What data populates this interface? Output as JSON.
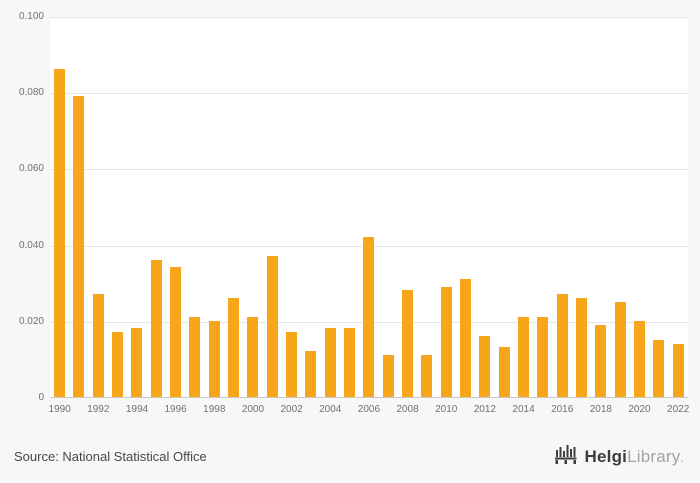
{
  "chart_data": {
    "type": "bar",
    "title": "",
    "xlabel": "",
    "ylabel": "",
    "categories": [
      1990,
      1991,
      1992,
      1993,
      1994,
      1995,
      1996,
      1997,
      1998,
      1999,
      2000,
      2001,
      2002,
      2003,
      2004,
      2005,
      2006,
      2007,
      2008,
      2009,
      2010,
      2011,
      2012,
      2013,
      2014,
      2015,
      2016,
      2017,
      2018,
      2019,
      2020,
      2021,
      2022
    ],
    "values": [
      0.086,
      0.079,
      0.027,
      0.017,
      0.018,
      0.036,
      0.034,
      0.021,
      0.02,
      0.026,
      0.021,
      0.037,
      0.017,
      0.012,
      0.018,
      0.018,
      0.042,
      0.011,
      0.028,
      0.011,
      0.029,
      0.031,
      0.016,
      0.013,
      0.021,
      0.021,
      0.027,
      0.026,
      0.019,
      0.025,
      0.02,
      0.015,
      0.014
    ],
    "ylim": [
      0,
      0.1
    ],
    "yticks": [
      {
        "value": 0,
        "label": "0"
      },
      {
        "value": 0.02,
        "label": "0.020"
      },
      {
        "value": 0.04,
        "label": "0.040"
      },
      {
        "value": 0.06,
        "label": "0.060"
      },
      {
        "value": 0.08,
        "label": "0.080"
      },
      {
        "value": 0.1,
        "label": "0.100"
      }
    ],
    "xtick_step": 2,
    "grid": true,
    "legend": "none",
    "bar_color": "#f7a51b",
    "grid_color": "#e6e6e6",
    "axis_color": "#c9c9c9",
    "tick_label_color": "#707070",
    "plot_background": "#ffffff",
    "page_background": "#f7f7f7"
  },
  "footer": {
    "source": "Source: National Statistical Office",
    "logo": {
      "name": "HelgiLibrary",
      "part1": "Helgi",
      "part2": "Library",
      "suffix": "."
    }
  }
}
